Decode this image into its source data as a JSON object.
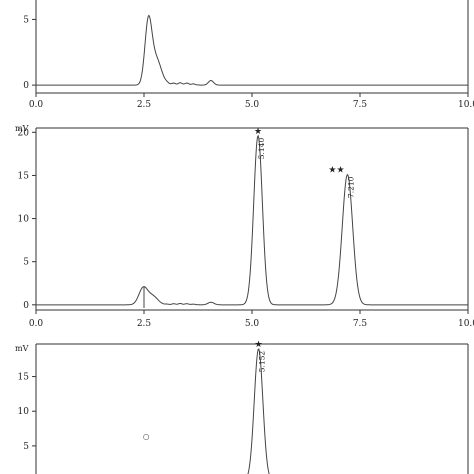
{
  "chart_data": [
    {
      "type": "line",
      "ylabel": "",
      "xlim": [
        0,
        10
      ],
      "ylim": [
        -0.6,
        8
      ],
      "x_ticks": [
        "0.0",
        "2.5",
        "5.0",
        "7.5",
        "10.0"
      ],
      "y_ticks": [
        {
          "value": 0,
          "label": "0"
        },
        {
          "value": 5,
          "label": "5"
        }
      ],
      "grid": false,
      "series": [
        {
          "baseline": 0,
          "peaks": [
            {
              "center": 2.6,
              "height": 4.6,
              "width": 0.08
            },
            {
              "center": 2.78,
              "height": 2.0,
              "width": 0.12
            },
            {
              "center": 4.05,
              "height": 0.35,
              "width": 0.06
            }
          ],
          "shoulder": {
            "start": 2.9,
            "end": 3.8,
            "height": 0.18
          }
        }
      ],
      "annotations": []
    },
    {
      "type": "line",
      "ylabel": "mV",
      "xlim": [
        0,
        10
      ],
      "ylim": [
        -0.6,
        20.5
      ],
      "x_ticks": [
        "0.0",
        "2.5",
        "5.0",
        "7.5",
        "10.0"
      ],
      "y_ticks": [
        {
          "value": 0,
          "label": "0"
        },
        {
          "value": 5,
          "label": "5"
        },
        {
          "value": 10,
          "label": "10"
        },
        {
          "value": 15,
          "label": "15"
        },
        {
          "value": 20,
          "label": "20"
        }
      ],
      "grid": false,
      "series": [
        {
          "baseline": 0,
          "peaks": [
            {
              "center": 2.48,
              "height": 1.9,
              "width": 0.1
            },
            {
              "center": 2.7,
              "height": 1.0,
              "width": 0.12
            },
            {
              "center": 4.05,
              "height": 0.3,
              "width": 0.07
            },
            {
              "center": 5.14,
              "height": 19.6,
              "width": 0.1
            },
            {
              "center": 7.21,
              "height": 15.1,
              "width": 0.12
            }
          ],
          "shoulder": {
            "start": 2.9,
            "end": 3.8,
            "height": 0.15
          }
        }
      ],
      "annotations": [
        {
          "x": 5.14,
          "marker": "★",
          "text": "5.140"
        },
        {
          "x": 7.21,
          "marker": "★★",
          "text": "7.210"
        }
      ]
    },
    {
      "type": "line",
      "ylabel": "mV",
      "xlim": [
        0,
        10
      ],
      "ylim": [
        -0.5,
        19.7
      ],
      "x_ticks": [],
      "y_ticks": [
        {
          "value": 5,
          "label": "5"
        },
        {
          "value": 10,
          "label": "10"
        },
        {
          "value": 15,
          "label": "15"
        }
      ],
      "grid": false,
      "series": [
        {
          "baseline": 0,
          "peaks": [
            {
              "center": 5.152,
              "height": 19.0,
              "width": 0.1
            }
          ],
          "shoulder": null
        }
      ],
      "annotations": [
        {
          "x": 5.152,
          "marker": "★",
          "text": "5.152"
        },
        {
          "x": 2.55,
          "marker": "",
          "text": "○",
          "y": 6.0
        }
      ]
    }
  ]
}
